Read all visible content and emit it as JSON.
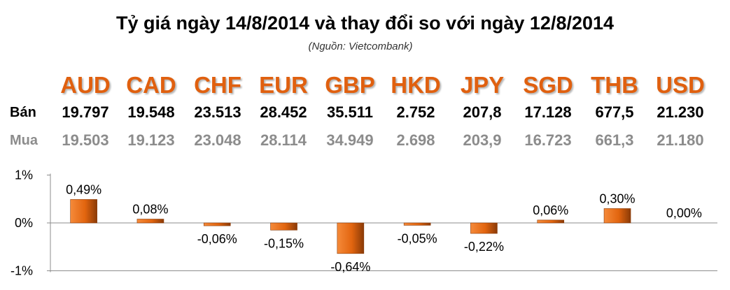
{
  "header": {
    "title": "Tỷ giá ngày 14/8/2014 và thay đổi so với ngày 12/8/2014",
    "source": "(Nguồn: Vietcombank)"
  },
  "table": {
    "row_labels": {
      "sell": "Bán",
      "buy": "Mua"
    },
    "columns": [
      {
        "currency": "AUD",
        "sell": "19.797",
        "buy": "19.503"
      },
      {
        "currency": "CAD",
        "sell": "19.548",
        "buy": "19.123"
      },
      {
        "currency": "CHF",
        "sell": "23.513",
        "buy": "23.048"
      },
      {
        "currency": "EUR",
        "sell": "28.452",
        "buy": "28.114"
      },
      {
        "currency": "GBP",
        "sell": "35.511",
        "buy": "34.949"
      },
      {
        "currency": "HKD",
        "sell": "2.752",
        "buy": "2.698"
      },
      {
        "currency": "JPY",
        "sell": "207,8",
        "buy": "203,9"
      },
      {
        "currency": "SGD",
        "sell": "17.128",
        "buy": "16.723"
      },
      {
        "currency": "THB",
        "sell": "677,5",
        "buy": "661,3"
      },
      {
        "currency": "USD",
        "sell": "21.230",
        "buy": "21.180"
      }
    ]
  },
  "colors": {
    "currency_text": "#e0600f",
    "bar_fill": "#e2650f",
    "bar_dark": "#8a3a07",
    "bar_light": "#f58a3a",
    "sell_text": "#000000",
    "buy_text": "#8c8c8c"
  },
  "chart_data": {
    "type": "bar",
    "categories": [
      "AUD",
      "CAD",
      "CHF",
      "EUR",
      "GBP",
      "HKD",
      "JPY",
      "SGD",
      "THB",
      "USD"
    ],
    "values": [
      0.49,
      0.08,
      -0.06,
      -0.15,
      -0.64,
      -0.05,
      -0.22,
      0.06,
      0.3,
      0.0
    ],
    "data_labels": [
      "0,49%",
      "0,08%",
      "-0,06%",
      "-0,15%",
      "-0,64%",
      "-0,05%",
      "-0,22%",
      "0,06%",
      "0,30%",
      "0,00%"
    ],
    "yticks": [
      1,
      0,
      -1
    ],
    "ytick_labels": [
      "1%",
      "0%",
      "-1%"
    ],
    "ylim": [
      -1,
      1
    ],
    "grid": false,
    "legend": "none"
  }
}
